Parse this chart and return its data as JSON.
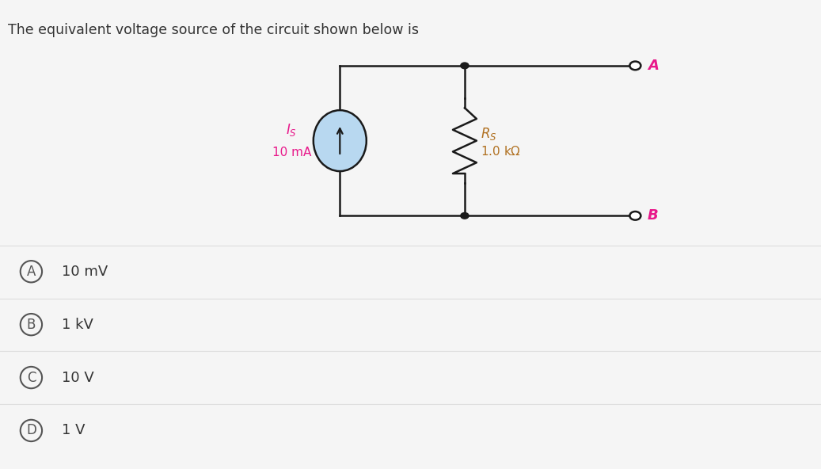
{
  "title": "The equivalent voltage source of the circuit shown below is",
  "title_fontsize": 12.5,
  "title_color": "#333333",
  "page_bg": "#f5f5f5",
  "circuit_area_bg": "#f5f5f5",
  "circuit_box_bg": "#ede8d0",
  "options": [
    {
      "label": "A",
      "text": "10 mV"
    },
    {
      "label": "B",
      "text": "1 kV"
    },
    {
      "label": "C",
      "text": "10 V"
    },
    {
      "label": "D",
      "text": "1 V"
    }
  ],
  "option_bg": "#ffffff",
  "option_divider": "#dddddd",
  "option_text_color": "#333333",
  "option_circle_color": "#555555",
  "option_fontsize": 13,
  "label_color_pink": "#e8188a",
  "label_color_orange": "#b07020",
  "current_source_fill": "#b8d8f0",
  "terminal_color": "#e8188a",
  "wire_color": "#1a1a1a",
  "dot_color": "#1a1a1a"
}
